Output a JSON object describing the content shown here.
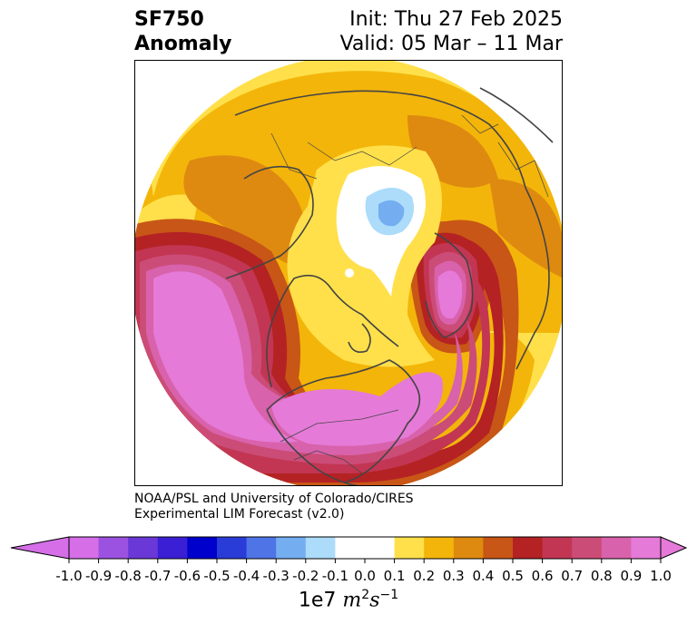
{
  "header": {
    "variable": "SF750",
    "type": "Anomaly",
    "init": "Init: Thu 27 Feb 2025",
    "valid": "Valid: 05 Mar – 11 Mar"
  },
  "credit": {
    "line1": "NOAA/PSL and University of Colorado/CIRES",
    "line2": "Experimental LIM Forecast (v2.0)"
  },
  "colorbar": {
    "ticks": [
      "-1.0",
      "-0.9",
      "-0.8",
      "-0.7",
      "-0.6",
      "-0.5",
      "-0.4",
      "-0.3",
      "-0.2",
      "-0.1",
      "0.0",
      "0.1",
      "0.2",
      "0.3",
      "0.4",
      "0.5",
      "0.6",
      "0.7",
      "0.8",
      "0.9",
      "1.0"
    ],
    "colors": [
      "#d66ee8",
      "#9b52e0",
      "#6a38d6",
      "#3a1fd4",
      "#0000cc",
      "#2a3cd8",
      "#4e74e6",
      "#74aef0",
      "#acdcfa",
      "#ffffff",
      "#ffffff",
      "#ffe04a",
      "#f3b50a",
      "#de8a10",
      "#c85616",
      "#b42224",
      "#c23653",
      "#cc4c78",
      "#d862ab",
      "#e57ad8"
    ],
    "under_color": "#d66ee8",
    "over_color": "#e57ad8",
    "units_prefix": "1e7 ",
    "units_m": "m",
    "units_m_exp": "2",
    "units_s": "s",
    "units_s_exp": "−1"
  },
  "map": {
    "projection": "north-polar-stereographic",
    "colors": {
      "yellow": "#ffe04a",
      "gold": "#f3b50a",
      "orange": "#de8a10",
      "dark_orange": "#c85616",
      "red": "#b42224",
      "crimson": "#c23653",
      "rose": "#cc4c78",
      "pink": "#d862ab",
      "magenta": "#e57ad8",
      "light_blue": "#acdcfa",
      "blue": "#74aef0",
      "coast": "#444444"
    }
  }
}
